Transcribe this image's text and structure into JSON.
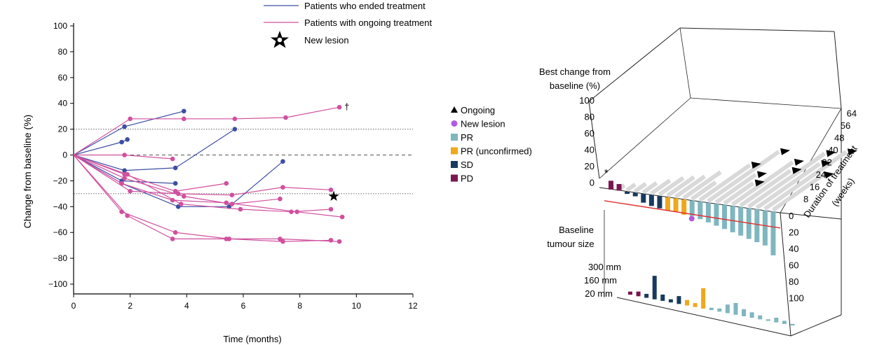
{
  "chart_data": [
    {
      "type": "line",
      "title": "",
      "xlabel": "Time (months)",
      "ylabel": "Change from baseline (%)",
      "xlim": [
        0,
        12
      ],
      "ylim": [
        -100,
        100
      ],
      "x_ticks": [
        "0",
        "2",
        "4",
        "6",
        "8",
        "10",
        "12"
      ],
      "y_ticks": [
        "100",
        "80",
        "60",
        "40",
        "20",
        "0",
        "−20",
        "−40",
        "−60",
        "−80",
        "−100"
      ],
      "reference_lines": [
        20,
        0,
        -30
      ],
      "legend": {
        "ended": "Patients who ended treatment",
        "ongoing": "Patients with ongoing treatment",
        "new_lesion": "New lesion"
      },
      "colors": {
        "ended": "#3c4fa3",
        "ongoing": "#d0509e"
      },
      "dagger_label": "†",
      "series": [
        {
          "group": "ended",
          "x": [
            0,
            1.8,
            3.9
          ],
          "y": [
            0,
            22,
            34
          ]
        },
        {
          "group": "ended",
          "x": [
            0,
            1.7,
            1.9
          ],
          "y": [
            0,
            10,
            12
          ]
        },
        {
          "group": "ended",
          "x": [
            0,
            1.8,
            3.6,
            5.7
          ],
          "y": [
            0,
            -12,
            -10,
            20
          ]
        },
        {
          "group": "ended",
          "x": [
            0,
            1.7,
            3.6
          ],
          "y": [
            0,
            -20,
            -22
          ]
        },
        {
          "group": "ended",
          "x": [
            0,
            1.7,
            3.7,
            5.5,
            7.4
          ],
          "y": [
            0,
            -22,
            -40,
            -40,
            -5
          ]
        },
        {
          "group": "ongoing",
          "x": [
            0,
            2.0,
            3.9,
            5.7,
            7.5,
            9.4
          ],
          "y": [
            0,
            28,
            28,
            28,
            29,
            37
          ]
        },
        {
          "group": "ongoing",
          "x": [
            0,
            1.8,
            3.5
          ],
          "y": [
            0,
            0,
            -3
          ]
        },
        {
          "group": "ongoing",
          "x": [
            0,
            1.8,
            3.6,
            5.4
          ],
          "y": [
            0,
            -15,
            -28,
            -22
          ]
        },
        {
          "group": "ongoing",
          "x": [
            0,
            2.0,
            3.7,
            5.6,
            7.4,
            9.1
          ],
          "y": [
            0,
            -28,
            -30,
            -31,
            -25,
            -27
          ]
        },
        {
          "group": "ongoing",
          "x": [
            0,
            1.8,
            3.9,
            5.6,
            7.3
          ],
          "y": [
            0,
            -18,
            -32,
            -38,
            -34
          ]
        },
        {
          "group": "ongoing",
          "x": [
            0,
            1.9,
            3.8,
            5.9,
            7.7,
            9.1
          ],
          "y": [
            0,
            -15,
            -38,
            -42,
            -44,
            -42
          ]
        },
        {
          "group": "ongoing",
          "x": [
            0,
            1.7,
            3.5,
            5.4,
            7.9,
            9.5
          ],
          "y": [
            0,
            -22,
            -35,
            -37,
            -44,
            -48
          ]
        },
        {
          "group": "ongoing",
          "x": [
            0,
            1.7,
            3.6,
            5.5,
            7.4,
            9.1
          ],
          "y": [
            0,
            -44,
            -60,
            -65,
            -67,
            -66
          ]
        },
        {
          "group": "ongoing",
          "x": [
            0,
            1.9,
            3.5,
            5.4,
            7.3,
            9.4
          ],
          "y": [
            0,
            -47,
            -65,
            -65,
            -65,
            -67
          ]
        }
      ],
      "new_lesion_point": {
        "x": 9.2,
        "y": -32
      },
      "dagger_point": {
        "x": 9.4,
        "y": 37
      }
    },
    {
      "type": "bar",
      "title": "",
      "labels": {
        "top_axis_title": "Best change from baseline (%)",
        "bottom_axis_title": "Baseline tumour size",
        "depth_axis_title": "Duration of treatment (weeks)",
        "asterisk": "*"
      },
      "top_axis_ticks": [
        "100",
        "80",
        "60",
        "40",
        "20",
        "0"
      ],
      "right_ticks": [
        "0",
        "20",
        "40",
        "60",
        "80",
        "100"
      ],
      "depth_ticks": [
        "8",
        "16",
        "24",
        "32",
        "40",
        "48",
        "56",
        "64"
      ],
      "size_ticks": [
        "300 mm",
        "160 mm",
        "20 mm"
      ],
      "legend": [
        {
          "label": "Ongoing",
          "symbol": "triangle",
          "color": "#000000"
        },
        {
          "label": "New lesion",
          "symbol": "dot",
          "color": "#b15ae0"
        },
        {
          "label": "PR",
          "symbol": "square",
          "color": "#7fb6bf"
        },
        {
          "label": "PR (unconfirmed)",
          "symbol": "square",
          "color": "#f0a81a"
        },
        {
          "label": "SD",
          "symbol": "square",
          "color": "#173a5e"
        },
        {
          "label": "PD",
          "symbol": "square",
          "color": "#7a1650"
        }
      ],
      "series": [
        {
          "name": "Best change from baseline (%)",
          "values": [
            20,
            15,
            -5,
            -8,
            -20,
            -25,
            -28,
            -30,
            -30,
            -35,
            -35,
            -40,
            -45,
            -50,
            -55,
            -60,
            -65,
            -70,
            -75,
            -80,
            -100
          ]
        },
        {
          "name": "Baseline tumour size (mm)",
          "values": [
            40,
            60,
            50,
            300,
            80,
            40,
            100,
            70,
            50,
            260,
            30,
            40,
            110,
            150,
            90,
            70,
            50,
            20,
            60,
            40,
            20
          ]
        },
        {
          "name": "Duration of treatment (weeks)",
          "values": [
            4,
            6,
            8,
            10,
            12,
            16,
            20,
            22,
            24,
            30,
            20,
            40,
            56,
            32,
            24,
            48,
            40,
            60,
            50,
            64,
            40
          ]
        }
      ],
      "response": [
        "PD",
        "PD",
        "SD",
        "SD",
        "SD",
        "SD",
        "SD",
        "PRu",
        "PRu",
        "PRu",
        "PR",
        "PR",
        "PR",
        "PR",
        "PR",
        "PR",
        "PR",
        "PR",
        "PR",
        "PR",
        "PR"
      ],
      "ongoing_index": [
        11,
        12,
        13,
        14,
        15,
        16,
        17,
        18,
        19,
        20
      ],
      "new_lesion_index": 10,
      "reference_line_value": -30,
      "colors": {
        "PD": "#7a1650",
        "SD": "#173a5e",
        "PRu": "#f0a81a",
        "PR": "#7fb6bf",
        "duration": "#d9d9d9",
        "ref": "#e03030",
        "new_lesion": "#b15ae0"
      }
    }
  ]
}
